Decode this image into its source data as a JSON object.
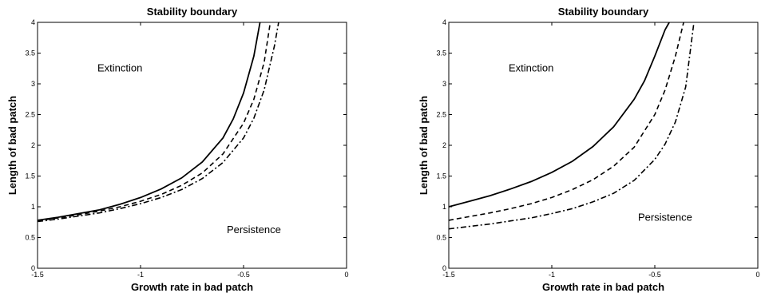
{
  "chart_data": [
    {
      "type": "line",
      "title": "Stability boundary",
      "xlabel": "Growth rate in bad patch",
      "ylabel": "Length of bad patch",
      "xlim": [
        -1.5,
        0
      ],
      "ylim": [
        0,
        4
      ],
      "xticks": [
        -1.5,
        -1,
        -0.5,
        0
      ],
      "xtick_labels": [
        "-1.5",
        "-1",
        "-0.5",
        "0"
      ],
      "yticks": [
        0,
        0.5,
        1,
        1.5,
        2,
        2.5,
        3,
        3.5,
        4
      ],
      "ytick_labels": [
        "0",
        "0.5",
        "1",
        "1.5",
        "2",
        "2.5",
        "3",
        "3.5",
        "4"
      ],
      "grid": false,
      "annotations": [
        {
          "text": "Extinction",
          "x": -1.1,
          "y": 3.2
        },
        {
          "text": "Persistence",
          "x": -0.45,
          "y": 0.57
        }
      ],
      "series": [
        {
          "style": "solid",
          "x": [
            -1.5,
            -1.4,
            -1.3,
            -1.2,
            -1.1,
            -1.0,
            -0.9,
            -0.8,
            -0.7,
            -0.6,
            -0.55,
            -0.5,
            -0.45,
            -0.42
          ],
          "y": [
            0.78,
            0.83,
            0.89,
            0.95,
            1.04,
            1.15,
            1.29,
            1.47,
            1.73,
            2.12,
            2.43,
            2.85,
            3.45,
            4.0
          ]
        },
        {
          "style": "dashed",
          "x": [
            -1.5,
            -1.4,
            -1.3,
            -1.2,
            -1.1,
            -1.0,
            -0.9,
            -0.8,
            -0.7,
            -0.6,
            -0.5,
            -0.45,
            -0.4,
            -0.37
          ],
          "y": [
            0.77,
            0.82,
            0.87,
            0.93,
            1.0,
            1.09,
            1.2,
            1.35,
            1.55,
            1.86,
            2.36,
            2.75,
            3.35,
            4.0
          ]
        },
        {
          "style": "dashdot",
          "x": [
            -1.5,
            -1.4,
            -1.3,
            -1.2,
            -1.1,
            -1.0,
            -0.9,
            -0.8,
            -0.7,
            -0.6,
            -0.5,
            -0.45,
            -0.4,
            -0.35,
            -0.33
          ],
          "y": [
            0.76,
            0.8,
            0.85,
            0.9,
            0.97,
            1.05,
            1.15,
            1.28,
            1.46,
            1.72,
            2.12,
            2.44,
            2.9,
            3.62,
            4.0
          ]
        }
      ]
    },
    {
      "type": "line",
      "title": "Stability boundary",
      "xlabel": "Growth rate in bad patch",
      "ylabel": "Length of bad patch",
      "xlim": [
        -1.5,
        0
      ],
      "ylim": [
        0,
        4
      ],
      "xticks": [
        -1.5,
        -1,
        -0.5,
        0
      ],
      "xtick_labels": [
        "-1.5",
        "-1",
        "-0.5",
        "0"
      ],
      "yticks": [
        0,
        0.5,
        1,
        1.5,
        2,
        2.5,
        3,
        3.5,
        4
      ],
      "ytick_labels": [
        "0",
        "0.5",
        "1",
        "1.5",
        "2",
        "2.5",
        "3",
        "3.5",
        "4"
      ],
      "grid": false,
      "annotations": [
        {
          "text": "Extinction",
          "x": -1.1,
          "y": 3.2
        },
        {
          "text": "Persistence",
          "x": -0.45,
          "y": 0.77
        }
      ],
      "series": [
        {
          "style": "solid",
          "x": [
            -1.5,
            -1.4,
            -1.3,
            -1.2,
            -1.1,
            -1.0,
            -0.9,
            -0.8,
            -0.7,
            -0.6,
            -0.55,
            -0.5,
            -0.45,
            -0.43
          ],
          "y": [
            1.0,
            1.09,
            1.18,
            1.29,
            1.41,
            1.56,
            1.74,
            1.98,
            2.3,
            2.75,
            3.05,
            3.45,
            3.88,
            4.0
          ]
        },
        {
          "style": "dashed",
          "x": [
            -1.5,
            -1.4,
            -1.3,
            -1.2,
            -1.1,
            -1.0,
            -0.9,
            -0.8,
            -0.7,
            -0.6,
            -0.5,
            -0.45,
            -0.4,
            -0.36
          ],
          "y": [
            0.78,
            0.84,
            0.9,
            0.97,
            1.05,
            1.15,
            1.28,
            1.44,
            1.66,
            1.97,
            2.5,
            2.9,
            3.45,
            4.0
          ]
        },
        {
          "style": "dashdot",
          "x": [
            -1.5,
            -1.4,
            -1.3,
            -1.2,
            -1.1,
            -1.0,
            -0.9,
            -0.8,
            -0.7,
            -0.6,
            -0.5,
            -0.45,
            -0.4,
            -0.35,
            -0.31
          ],
          "y": [
            0.64,
            0.68,
            0.72,
            0.77,
            0.82,
            0.89,
            0.97,
            1.08,
            1.22,
            1.43,
            1.77,
            2.02,
            2.38,
            2.95,
            4.0
          ]
        }
      ]
    }
  ]
}
